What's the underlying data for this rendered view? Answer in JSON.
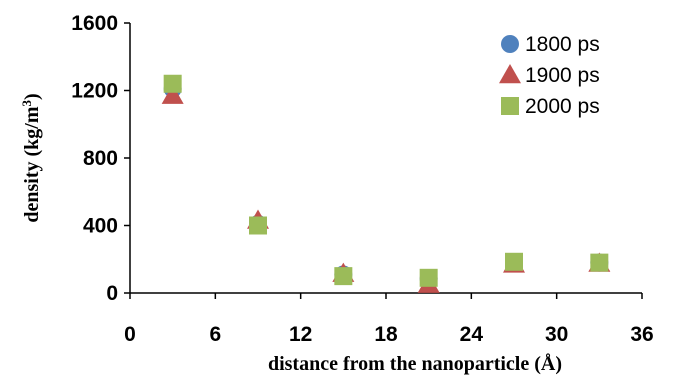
{
  "chart_data": {
    "type": "scatter",
    "xlabel": "distance from the nanoparticle (Å)",
    "ylabel": "density (kg/m",
    "ylabel_superscript": "3",
    "ylabel_close": ")",
    "xlim": [
      0,
      36
    ],
    "ylim": [
      0,
      1600
    ],
    "x_ticks": [
      "0",
      "6",
      "12",
      "18",
      "24",
      "30",
      "36"
    ],
    "y_ticks": [
      "0",
      "400",
      "800",
      "1200",
      "1600"
    ],
    "grid": false,
    "legend_position": "top-right",
    "series": [
      {
        "name": "1800 ps",
        "marker": "circle",
        "color": "#4f81bd",
        "points": [
          [
            3,
            1210
          ],
          [
            9,
            410
          ],
          [
            15,
            110
          ],
          [
            21,
            85
          ],
          [
            27,
            175
          ],
          [
            33,
            180
          ]
        ]
      },
      {
        "name": "1900 ps",
        "marker": "triangle",
        "color": "#c0504d",
        "points": [
          [
            3,
            1170
          ],
          [
            9,
            430
          ],
          [
            15,
            115
          ],
          [
            21,
            50
          ],
          [
            27,
            170
          ],
          [
            33,
            175
          ]
        ]
      },
      {
        "name": "2000 ps",
        "marker": "square",
        "color": "#9bbb59",
        "points": [
          [
            3,
            1240
          ],
          [
            9,
            400
          ],
          [
            15,
            100
          ],
          [
            21,
            90
          ],
          [
            27,
            185
          ],
          [
            33,
            180
          ]
        ]
      }
    ]
  }
}
